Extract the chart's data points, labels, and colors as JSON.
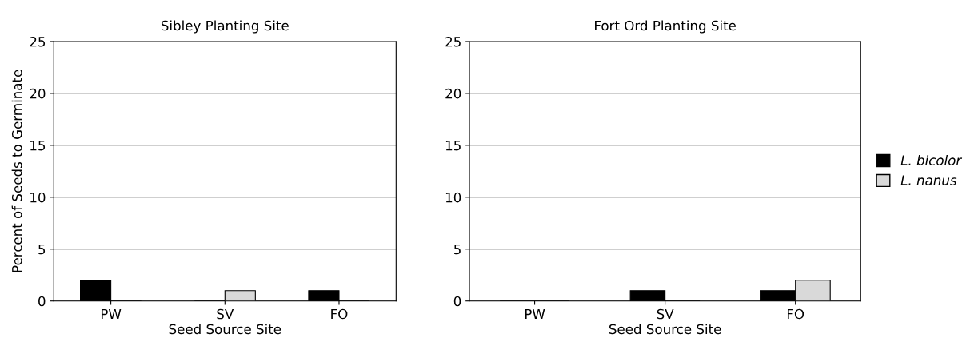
{
  "chart_data": [
    {
      "type": "bar",
      "title": "Sibley Planting Site",
      "xlabel": "Seed Source Site",
      "ylabel": "Percent of Seeds to Germinate",
      "categories": [
        "PW",
        "SV",
        "FO"
      ],
      "series": [
        {
          "color": "#000000",
          "values": [
            2,
            0,
            1
          ]
        },
        {
          "color": "#d9d9d9",
          "values": [
            0,
            1,
            0
          ]
        }
      ],
      "ylim": [
        0,
        25
      ],
      "yticks": [
        0,
        5,
        10,
        15,
        20,
        25
      ],
      "grid": "y",
      "legend": false
    },
    {
      "type": "bar",
      "title": "Fort Ord Planting Site",
      "xlabel": "Seed Source Site",
      "categories": [
        "PW",
        "SV",
        "FO"
      ],
      "series": [
        {
          "name": "L. bicolor",
          "color": "#000000",
          "values": [
            0,
            1,
            1
          ]
        },
        {
          "name": "L. nanus",
          "color": "#d9d9d9",
          "values": [
            0,
            0,
            2
          ]
        }
      ],
      "ylim": [
        0,
        25
      ],
      "yticks": [
        0,
        5,
        10,
        15,
        20,
        25
      ],
      "grid": "y",
      "legend": "right"
    }
  ]
}
